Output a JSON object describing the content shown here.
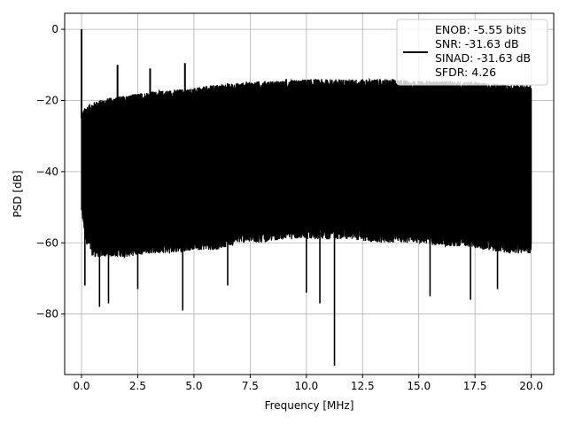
{
  "chart_data": {
    "type": "line",
    "title": "",
    "xlabel": "Frequency [MHz]",
    "ylabel": "PSD [dB]",
    "xlim": [
      -0.75,
      21.0
    ],
    "ylim": [
      -97,
      4.5
    ],
    "x_ticks": [
      0.0,
      2.5,
      5.0,
      7.5,
      10.0,
      12.5,
      15.0,
      17.5,
      20.0
    ],
    "x_tick_labels": [
      "0.0",
      "2.5",
      "5.0",
      "7.5",
      "10.0",
      "12.5",
      "15.0",
      "17.5",
      "20.0"
    ],
    "y_ticks": [
      0,
      -20,
      -40,
      -60,
      -80
    ],
    "y_tick_labels": [
      "0",
      "−20",
      "−40",
      "−60",
      "−80"
    ],
    "grid": true,
    "legend_position": "top-right",
    "legend_lines": [
      "ENOB: -5.55 bits",
      "SNR: -31.63 dB",
      "SINAD: -31.63 dB",
      "SFDR: 4.26"
    ],
    "series_color": "#000000",
    "grid_color": "#b0b0b0",
    "envelope": {
      "x": [
        0.0,
        0.2,
        0.5,
        1.0,
        2.0,
        3.0,
        4.0,
        5.0,
        6.0,
        7.0,
        8.0,
        9.0,
        10.0,
        11.0,
        12.0,
        13.0,
        14.0,
        15.0,
        16.0,
        17.0,
        18.0,
        19.0,
        20.0
      ],
      "upper_db": [
        -25,
        -23,
        -22,
        -21,
        -20,
        -19,
        -18.5,
        -18,
        -17,
        -16.5,
        -16,
        -16,
        -15.5,
        -15.5,
        -15.5,
        -15.5,
        -15.5,
        -16,
        -16,
        -16,
        -16.5,
        -17,
        -17
      ],
      "lower_db": [
        -50,
        -58,
        -62,
        -62,
        -62,
        -61,
        -61,
        -60,
        -60,
        -58,
        -58,
        -57,
        -57,
        -57,
        -57,
        -58,
        -58,
        -58,
        -59,
        -59,
        -60,
        -61,
        -61
      ]
    },
    "peaks": [
      {
        "x": 0.0,
        "y": 0.0
      },
      {
        "x": 1.6,
        "y": -10
      },
      {
        "x": 3.05,
        "y": -11
      },
      {
        "x": 4.6,
        "y": -9.5
      },
      {
        "x": 9.1,
        "y": -14
      }
    ],
    "dips": [
      {
        "x": 0.15,
        "y": -72
      },
      {
        "x": 0.8,
        "y": -78
      },
      {
        "x": 1.2,
        "y": -77
      },
      {
        "x": 2.5,
        "y": -73
      },
      {
        "x": 4.5,
        "y": -79
      },
      {
        "x": 6.5,
        "y": -72
      },
      {
        "x": 10.0,
        "y": -74
      },
      {
        "x": 10.6,
        "y": -77
      },
      {
        "x": 11.25,
        "y": -94.5
      },
      {
        "x": 15.5,
        "y": -75
      },
      {
        "x": 17.3,
        "y": -76
      },
      {
        "x": 18.5,
        "y": -73
      }
    ]
  }
}
